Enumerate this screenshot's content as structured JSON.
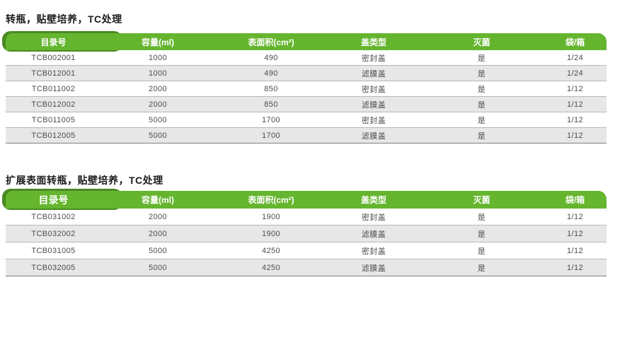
{
  "page": {
    "background": "#ffffff"
  },
  "theme": {
    "header_green": "#65b52f",
    "header_accent_green": "#4a8a23",
    "header_text": "#ffffff",
    "row_alt_bg": "#e7e7e7",
    "row_border": "#b8b8b8",
    "table_bottom_border": "#7f7f7f",
    "title_text": "#1c1c1c",
    "body_text": "#4c4c4c"
  },
  "tables": [
    {
      "title": "转瓶，贴壁培养，TC处理",
      "columns": [
        "目录号",
        "容量(ml)",
        "表面积(cm²)",
        "盖类型",
        "灭菌",
        "袋/箱"
      ],
      "rows": [
        [
          "TCB002001",
          "1000",
          "490",
          "密封盖",
          "是",
          "1/24"
        ],
        [
          "TCB012001",
          "1000",
          "490",
          "滤膜盖",
          "是",
          "1/24"
        ],
        [
          "TCB011002",
          "2000",
          "850",
          "密封盖",
          "是",
          "1/12"
        ],
        [
          "TCB012002",
          "2000",
          "850",
          "滤膜盖",
          "是",
          "1/12"
        ],
        [
          "TCB011005",
          "5000",
          "1700",
          "密封盖",
          "是",
          "1/12"
        ],
        [
          "TCB012005",
          "5000",
          "1700",
          "滤膜盖",
          "是",
          "1/12"
        ]
      ]
    },
    {
      "title": "扩展表面转瓶，贴壁培养，TC处理",
      "columns": [
        "目录号",
        "容量(ml)",
        "表面积(cm²)",
        "盖类型",
        "灭菌",
        "袋/箱"
      ],
      "rows": [
        [
          "TCB031002",
          "2000",
          "1900",
          "密封盖",
          "是",
          "1/12"
        ],
        [
          "TCB032002",
          "2000",
          "1900",
          "滤膜盖",
          "是",
          "1/12"
        ],
        [
          "TCB031005",
          "5000",
          "4250",
          "密封盖",
          "是",
          "1/12"
        ],
        [
          "TCB032005",
          "5000",
          "4250",
          "滤膜盖",
          "是",
          "1/12"
        ]
      ]
    }
  ]
}
